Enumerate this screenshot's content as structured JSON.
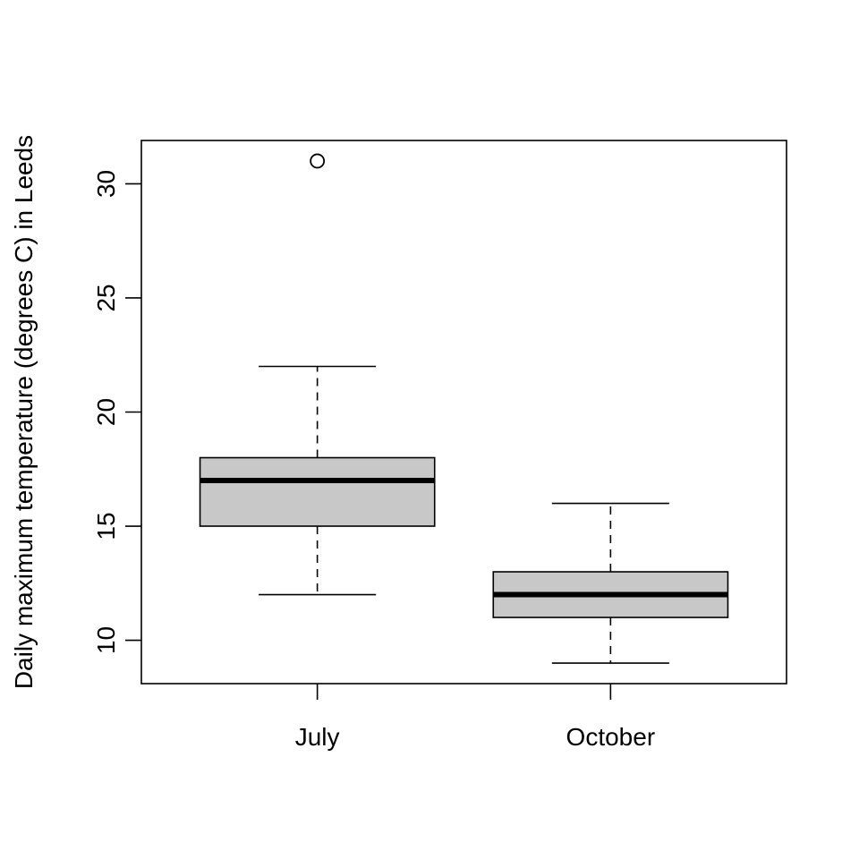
{
  "chart_data": {
    "type": "boxplot",
    "title": "",
    "xlabel": "",
    "ylabel": "Daily maximum temperature (degrees C) in Leeds",
    "categories": [
      "July",
      "October"
    ],
    "boxes": [
      {
        "category": "July",
        "whisker_low": 12,
        "q1": 15,
        "median": 17,
        "q3": 18,
        "whisker_high": 22,
        "outliers": [
          31
        ]
      },
      {
        "category": "October",
        "whisker_low": 9,
        "q1": 11,
        "median": 12,
        "q3": 13,
        "whisker_high": 16,
        "outliers": []
      }
    ],
    "yticks": [
      10,
      15,
      20,
      25,
      30
    ],
    "ylim": [
      8.1,
      31.9
    ],
    "box_fill": "#c8c8c8",
    "grid": false
  }
}
